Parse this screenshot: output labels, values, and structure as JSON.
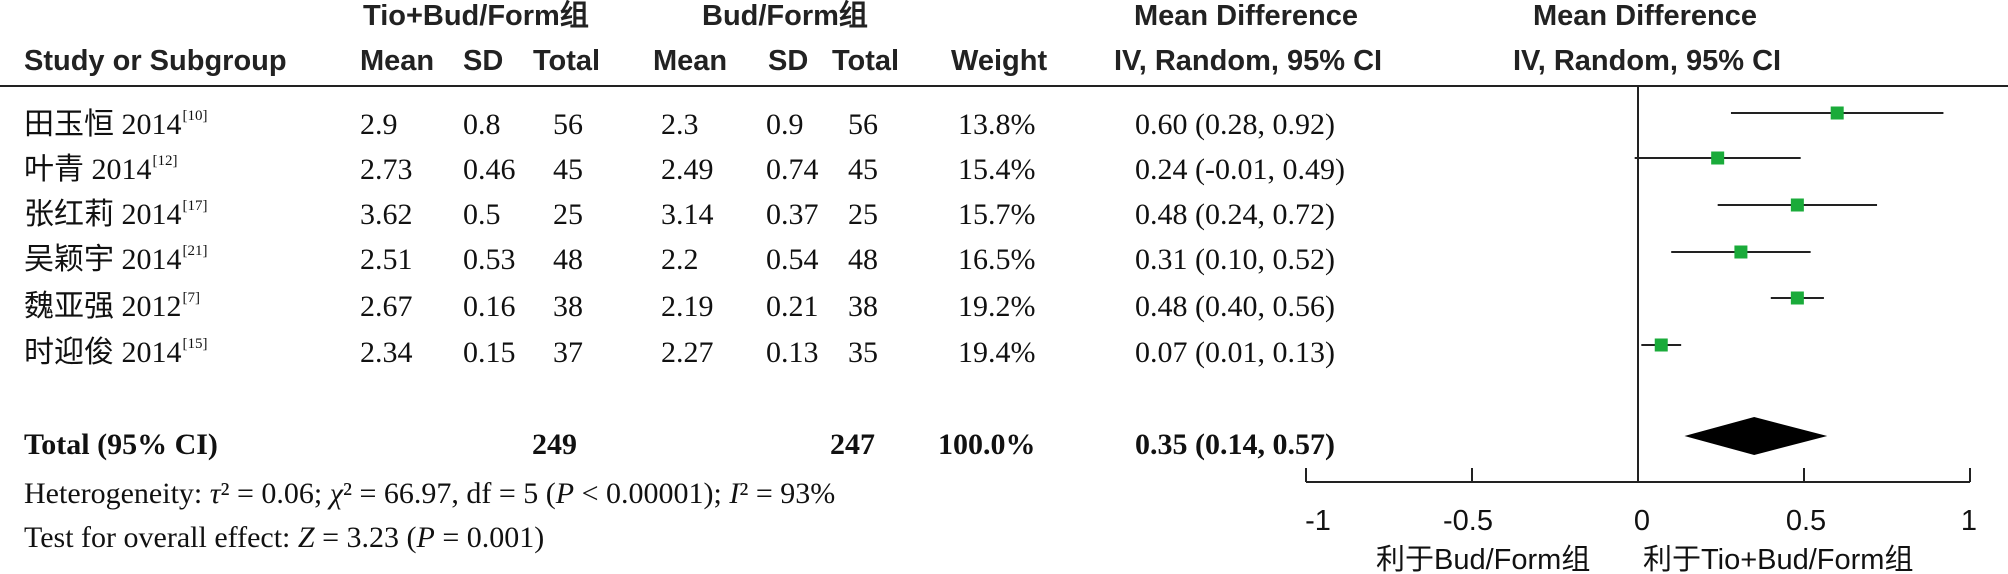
{
  "headers": {
    "group1": "Tio+Bud/Form组",
    "group2": "Bud/Form组",
    "md_left_line1": "Mean Difference",
    "md_left_line2": "IV, Random, 95% CI",
    "md_right_line1": "Mean Difference",
    "md_right_line2": "IV, Random, 95% CI",
    "study": "Study or Subgroup",
    "mean1": "Mean",
    "sd1": "SD",
    "total1": "Total",
    "mean2": "Mean",
    "sd2": "SD",
    "total2": "Total",
    "weight": "Weight"
  },
  "studies": [
    {
      "name": "田玉恒 2014",
      "ref": "[10]",
      "mean1": "2.9",
      "sd1": "0.8",
      "total1": "56",
      "mean2": "2.3",
      "sd2": "0.9",
      "total2": "56",
      "weight": "13.8%",
      "ci_text": "0.60 (0.28, 0.92)"
    },
    {
      "name": "叶青 2014",
      "ref": "[12]",
      "mean1": "2.73",
      "sd1": "0.46",
      "total1": "45",
      "mean2": "2.49",
      "sd2": "0.74",
      "total2": "45",
      "weight": "15.4%",
      "ci_text": "0.24 (-0.01, 0.49)"
    },
    {
      "name": "张红莉 2014",
      "ref": "[17]",
      "mean1": "3.62",
      "sd1": "0.5",
      "total1": "25",
      "mean2": "3.14",
      "sd2": "0.37",
      "total2": "25",
      "weight": "15.7%",
      "ci_text": "0.48 (0.24, 0.72)"
    },
    {
      "name": "吴颖宇 2014",
      "ref": "[21]",
      "mean1": "2.51",
      "sd1": "0.53",
      "total1": "48",
      "mean2": "2.2",
      "sd2": "0.54",
      "total2": "48",
      "weight": "16.5%",
      "ci_text": "0.31 (0.10, 0.52)"
    },
    {
      "name": "魏亚强 2012",
      "ref": "[7]",
      "mean1": "2.67",
      "sd1": "0.16",
      "total1": "38",
      "mean2": "2.19",
      "sd2": "0.21",
      "total2": "38",
      "weight": "19.2%",
      "ci_text": "0.48 (0.40, 0.56)"
    },
    {
      "name": "时迎俊 2014",
      "ref": "[15]",
      "mean1": "2.34",
      "sd1": "0.15",
      "total1": "37",
      "mean2": "2.27",
      "sd2": "0.13",
      "total2": "35",
      "weight": "19.4%",
      "ci_text": "0.07 (0.01, 0.13)"
    }
  ],
  "total": {
    "label": "Total (95% CI)",
    "total1": "249",
    "total2": "247",
    "weight": "100.0%",
    "ci_text": "0.35 (0.14, 0.57)"
  },
  "footer": {
    "het_prefix": "Heterogeneity: ",
    "tau_sym": "τ",
    "het_tau2": "² = 0.06; ",
    "chi_sym": "χ",
    "het_chi2": "² = 66.97, df = 5 (",
    "p_sym": "P",
    "het_p": " < 0.00001); ",
    "i_sym": "I",
    "het_i2": "² = 93%",
    "overall_prefix": "Test for overall effect: ",
    "z_sym": "Z",
    "overall_z": " = 3.23 (",
    "overall_p": " = 0.001)"
  },
  "axis": {
    "tick_labels": [
      "-1",
      "-0.5",
      "0",
      "0.5",
      "1"
    ],
    "favours_left": "利于Bud/Form组",
    "favours_right": "利于Tio+Bud/Form组"
  },
  "colors": {
    "marker": "#1aab3a",
    "diamond": "#000000",
    "line": "#222222"
  },
  "chart_data": {
    "type": "forest",
    "xlim": [
      -1,
      1
    ],
    "ticks": [
      -1,
      -0.5,
      0,
      0.5,
      1
    ],
    "reference_line": 0,
    "studies": [
      {
        "label": "田玉恒 2014",
        "estimate": 0.6,
        "lower": 0.28,
        "upper": 0.92,
        "weight": 13.8
      },
      {
        "label": "叶青 2014",
        "estimate": 0.24,
        "lower": -0.01,
        "upper": 0.49,
        "weight": 15.4
      },
      {
        "label": "张红莉 2014",
        "estimate": 0.48,
        "lower": 0.24,
        "upper": 0.72,
        "weight": 15.7
      },
      {
        "label": "吴颖宇 2014",
        "estimate": 0.31,
        "lower": 0.1,
        "upper": 0.52,
        "weight": 16.5
      },
      {
        "label": "魏亚强 2012",
        "estimate": 0.48,
        "lower": 0.4,
        "upper": 0.56,
        "weight": 19.2
      },
      {
        "label": "时迎俊 2014",
        "estimate": 0.07,
        "lower": 0.01,
        "upper": 0.13,
        "weight": 19.4
      }
    ],
    "pooled": {
      "label": "Total (95% CI)",
      "estimate": 0.35,
      "lower": 0.14,
      "upper": 0.57
    }
  }
}
